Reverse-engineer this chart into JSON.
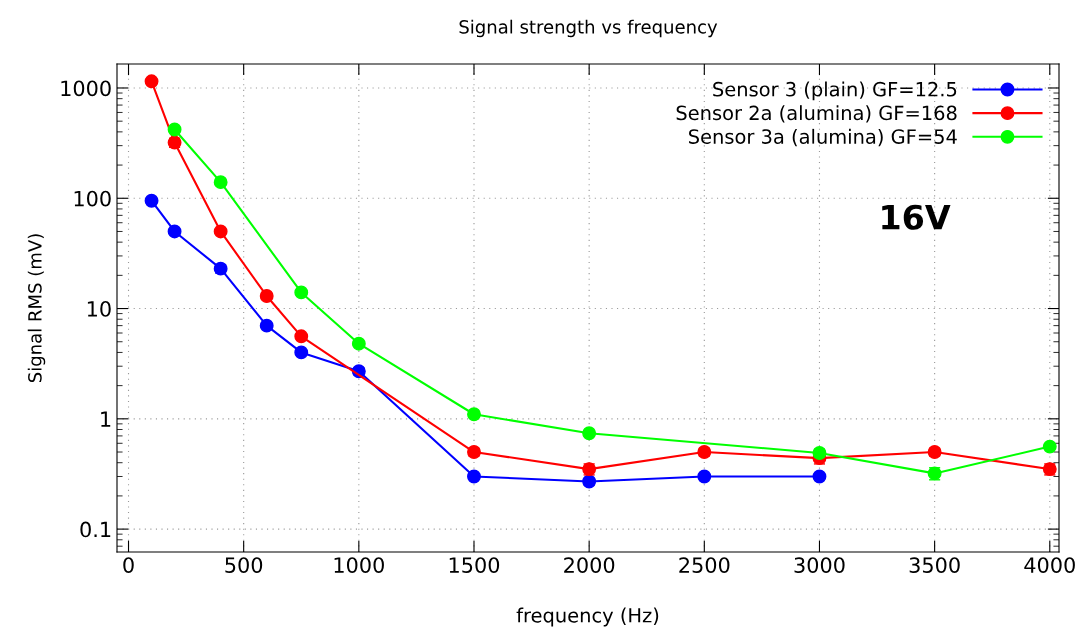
{
  "chart_data": {
    "type": "line",
    "title": "Signal strength vs frequency",
    "xlabel": "frequency (Hz)",
    "ylabel": "Signal RMS (mV)",
    "log": "y",
    "xlim": [
      -50,
      4040
    ],
    "ylim": [
      0.062,
      1650
    ],
    "xticks": [
      0,
      500,
      1000,
      1500,
      2000,
      2500,
      3000,
      3500,
      4000
    ],
    "yticks": [
      0.1,
      1,
      10,
      100,
      1000
    ],
    "grid": true,
    "legend": "top right",
    "marker": "circle",
    "line_style": "solid",
    "annotations": [
      "16V"
    ],
    "series": [
      {
        "name": "Sensor 3 (plain) GF=12.5",
        "color": "#0000ff",
        "x": [
          100,
          200,
          400,
          600,
          750,
          1000,
          1500,
          2000,
          2500,
          3000
        ],
        "values": [
          95,
          50,
          23,
          7,
          4,
          2.7,
          0.3,
          0.27,
          0.3,
          0.3
        ],
        "errors": [
          null,
          null,
          2,
          null,
          null,
          0.2,
          null,
          0.02,
          null,
          null
        ]
      },
      {
        "name": "Sensor 2a (alumina) GF=168",
        "color": "#ff0000",
        "x": [
          100,
          200,
          400,
          600,
          750,
          1500,
          2000,
          2500,
          3000,
          3500,
          4000
        ],
        "values": [
          1150,
          320,
          50,
          13,
          5.6,
          0.5,
          0.35,
          0.5,
          0.44,
          0.5,
          0.35
        ],
        "errors": [
          null,
          30,
          null,
          null,
          null,
          0.04,
          0.04,
          0.04,
          0.05,
          0.04,
          0.04
        ]
      },
      {
        "name": "Sensor 3a (alumina) GF=54",
        "color": "#00ff00",
        "x": [
          200,
          400,
          750,
          1000,
          1500,
          2000,
          3000,
          3500,
          4000
        ],
        "values": [
          420,
          140,
          14,
          4.8,
          1.1,
          0.74,
          0.49,
          0.32,
          0.56
        ],
        "errors": [
          null,
          null,
          null,
          null,
          null,
          null,
          0.04,
          0.04,
          null
        ]
      }
    ]
  }
}
